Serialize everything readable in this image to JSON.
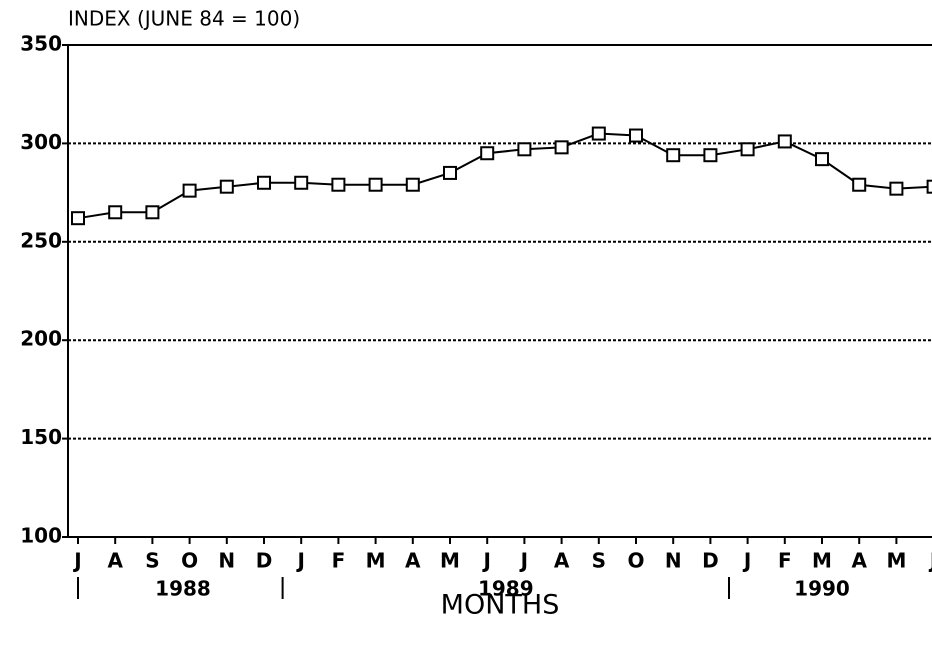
{
  "chart_data": {
    "type": "line",
    "y_label": "INDEX (JUNE 84 = 100)",
    "x_label": "MONTHS",
    "categories": [
      "J",
      "A",
      "S",
      "O",
      "N",
      "D",
      "J",
      "F",
      "M",
      "A",
      "M",
      "J",
      "J",
      "A",
      "S",
      "O",
      "N",
      "D",
      "J",
      "F",
      "M",
      "A",
      "M",
      "J"
    ],
    "years": [
      "1988",
      "1989",
      "1990"
    ],
    "series": [
      {
        "name": "Index",
        "color": "#000000",
        "values": [
          262,
          265,
          265,
          276,
          278,
          280,
          280,
          279,
          279,
          279,
          285,
          295,
          297,
          298,
          305,
          304,
          294,
          294,
          297,
          301,
          292,
          279,
          277,
          278
        ]
      }
    ],
    "ylim": [
      100,
      350
    ],
    "yticks": [
      100,
      150,
      200,
      250,
      300,
      350
    ],
    "grid": true
  }
}
